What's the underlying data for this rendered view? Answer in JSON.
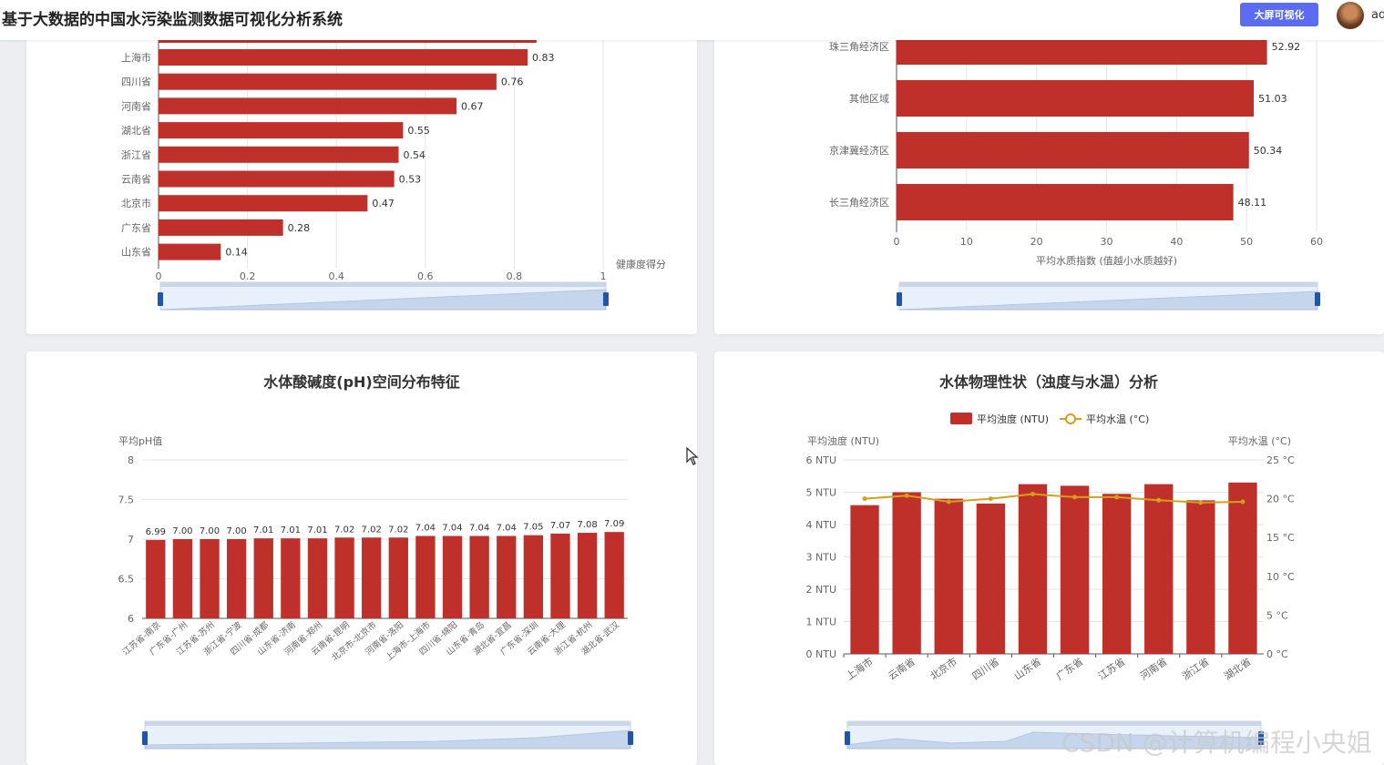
{
  "app": {
    "title": "基于大数据的中国水污染监测数据可视化分析系统",
    "bigscreen_label": "大屏可视化",
    "username": "ad"
  },
  "watermark": "CSDN @计算机编程小央姐",
  "colors": {
    "bar": "#c0302a",
    "line": "#d4a017",
    "accent": "#5b6cf2",
    "grid": "#e5e5e5"
  },
  "chart_data": [
    {
      "id": "health",
      "type": "bar",
      "orientation": "horizontal",
      "title": "",
      "categories": [
        "上海市",
        "四川省",
        "河南省",
        "湖北省",
        "浙江省",
        "云南省",
        "北京市",
        "广东省",
        "山东省"
      ],
      "values": [
        0.83,
        0.76,
        0.67,
        0.55,
        0.54,
        0.53,
        0.47,
        0.28,
        0.14
      ],
      "xlabel": "健康度得分",
      "xlim": [
        0,
        1
      ],
      "xticks": [
        "0",
        "0.2",
        "0.4",
        "0.6",
        "0.8",
        "1"
      ],
      "grid": true,
      "dataZoom": true
    },
    {
      "id": "region",
      "type": "bar",
      "orientation": "horizontal",
      "title": "",
      "categories": [
        "珠三角经济区",
        "其他区域",
        "京津冀经济区",
        "长三角经济区"
      ],
      "values": [
        52.92,
        51.03,
        50.34,
        48.11
      ],
      "xlabel": "平均水质指数 (值越小水质越好)",
      "xlim": [
        0,
        60
      ],
      "xticks": [
        "0",
        "10",
        "20",
        "30",
        "40",
        "50",
        "60"
      ],
      "grid": true,
      "dataZoom": true
    },
    {
      "id": "ph",
      "type": "bar",
      "title": "水体酸碱度(pH)空间分布特征",
      "ylabel": "平均pH值",
      "categories": [
        "江苏省-南京",
        "广东省-广州",
        "江苏省-苏州",
        "浙江省-宁波",
        "四川省-成都",
        "山东省-济南",
        "河南省-郑州",
        "云南省-昆明",
        "北京市-北京市",
        "河南省-洛阳",
        "上海市-上海市",
        "四川省-绵阳",
        "山东省-青岛",
        "湖北省-宜昌",
        "广东省-深圳",
        "云南省-大理",
        "浙江省-杭州",
        "湖北省-武汉"
      ],
      "values": [
        6.99,
        7.0,
        7.0,
        7.0,
        7.01,
        7.01,
        7.01,
        7.02,
        7.02,
        7.02,
        7.04,
        7.04,
        7.04,
        7.04,
        7.05,
        7.07,
        7.08,
        7.09
      ],
      "value_labels": [
        "6.99",
        "7.00",
        "7.00",
        "7.00",
        "7.01",
        "7.01",
        "7.01",
        "7.02",
        "7.02",
        "7.02",
        "7.04",
        "7.04",
        "7.04",
        "7.04",
        "7.05",
        "7.07",
        "7.08",
        "7.09"
      ],
      "ylim": [
        6,
        8
      ],
      "yticks": [
        "6",
        "6.5",
        "7",
        "7.5",
        "8"
      ],
      "grid": true,
      "dataZoom": true
    },
    {
      "id": "phys",
      "type": "bar+line",
      "title": "水体物理性状（浊度与水温）分析",
      "categories": [
        "上海市",
        "云南省",
        "北京市",
        "四川省",
        "山东省",
        "广东省",
        "江苏省",
        "河南省",
        "浙江省",
        "湖北省"
      ],
      "series": [
        {
          "name": "平均浊度 (NTU)",
          "type": "bar",
          "values": [
            4.6,
            5.0,
            4.8,
            4.65,
            5.25,
            5.2,
            4.95,
            5.25,
            4.75,
            5.3
          ]
        },
        {
          "name": "平均水温 (°C)",
          "type": "line",
          "values": [
            20.0,
            20.4,
            19.6,
            20.0,
            20.6,
            20.2,
            20.2,
            19.8,
            19.5,
            19.6
          ]
        }
      ],
      "ylabel_left": "平均浊度 (NTU)",
      "ylabel_right": "平均水温 (°C)",
      "ylim_left": [
        0,
        6
      ],
      "ylim_right": [
        0,
        25
      ],
      "yticks_left": [
        "0 NTU",
        "1 NTU",
        "2 NTU",
        "3 NTU",
        "4 NTU",
        "5 NTU",
        "6 NTU"
      ],
      "yticks_right": [
        "0 °C",
        "5 °C",
        "10 °C",
        "15 °C",
        "20 °C",
        "25 °C"
      ],
      "legend": "top-center",
      "grid": true,
      "dataZoom": true
    }
  ]
}
